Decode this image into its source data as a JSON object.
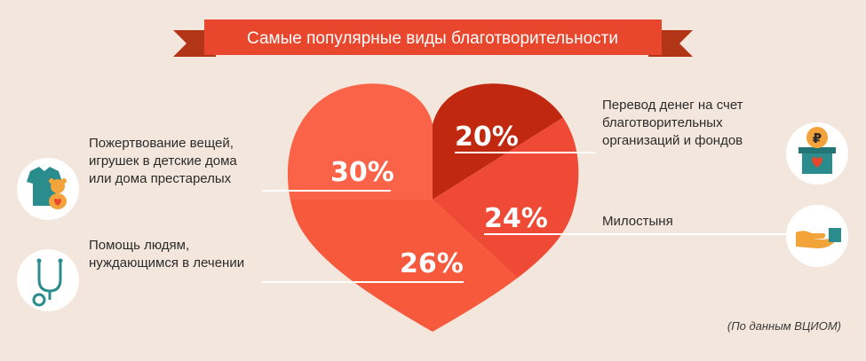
{
  "chart_data": {
    "type": "pie",
    "title": "Самые популярные виды благотворительности",
    "slices": [
      {
        "label": "Перевод денег на счет благотворительных организаций и фондов",
        "value": 20,
        "display": "20%",
        "color": "#c0290f"
      },
      {
        "label": "Милостыня",
        "value": 24,
        "display": "24%",
        "color": "#ef4a35"
      },
      {
        "label": "Помощь людям, нуждающимся в лечении",
        "value": 26,
        "display": "26%",
        "color": "#f7593d"
      },
      {
        "label": "Пожертвование вещей, игрушек в детские дома или дома престарелых",
        "value": 30,
        "display": "30%",
        "color": "#fb6349"
      }
    ],
    "source": "(По данным ВЦИОМ)"
  },
  "labels": {
    "donation_lines": [
      "Пожертвование вещей,",
      "игрушек в детские дома",
      "или дома престарелых"
    ],
    "medical_lines": [
      "Помощь людям,",
      "нуждающимся в лечении"
    ],
    "transfer_lines": [
      "Перевод денег на счет",
      "благотворительных",
      "организаций и фондов"
    ],
    "alms_lines": [
      "Милостыня"
    ]
  },
  "icons": {
    "clothes": "clothes-toy-icon",
    "stethoscope": "stethoscope-icon",
    "donation_box": "donation-box-icon",
    "hand": "giving-hand-icon",
    "ruble_symbol": "₽"
  },
  "colors": {
    "background": "#f3e6dc",
    "banner": "#e8472d",
    "banner_dark": "#b33518",
    "icon_teal": "#2a8c8c",
    "icon_orange": "#f2a33a"
  }
}
